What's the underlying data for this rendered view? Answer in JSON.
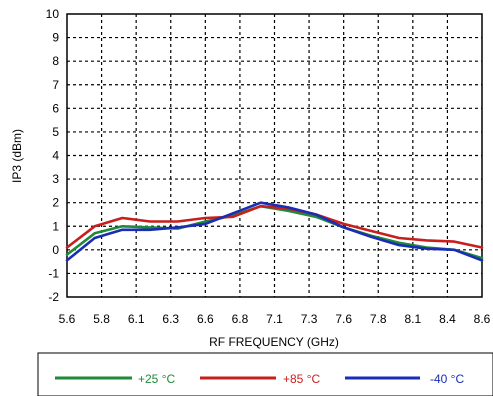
{
  "chart_data": {
    "type": "line",
    "xlabel": "RF FREQUENCY (GHz)",
    "ylabel": "IP3 (dBm)",
    "xlim": [
      5.6,
      8.6
    ],
    "ylim": [
      -2,
      10
    ],
    "grid": true,
    "legend_position": "bottom",
    "x_tick_labels": [
      "5.6",
      "5.8",
      "6.1",
      "6.3",
      "6.6",
      "6.8",
      "7.1",
      "7.3",
      "7.6",
      "7.8",
      "8.1",
      "8.4",
      "8.6"
    ],
    "y_tick_labels": [
      "-2",
      "-1",
      "0",
      "1",
      "2",
      "3",
      "4",
      "5",
      "6",
      "7",
      "8",
      "9",
      "10"
    ],
    "x": [
      5.6,
      5.8,
      6.0,
      6.2,
      6.4,
      6.6,
      6.8,
      7.0,
      7.2,
      7.4,
      7.6,
      7.8,
      8.0,
      8.2,
      8.4,
      8.6
    ],
    "series": [
      {
        "name": "+25 °C",
        "color": "#1e8a3a",
        "values": [
          -0.2,
          0.7,
          1.0,
          0.95,
          0.9,
          1.2,
          1.45,
          1.85,
          1.65,
          1.4,
          0.95,
          0.6,
          0.3,
          0.1,
          0.0,
          -0.35
        ]
      },
      {
        "name": "+85 °C",
        "color": "#c81e1e",
        "values": [
          0.1,
          1.0,
          1.35,
          1.2,
          1.2,
          1.35,
          1.4,
          1.85,
          1.75,
          1.5,
          1.1,
          0.8,
          0.5,
          0.4,
          0.35,
          0.1
        ]
      },
      {
        "name": "-40 °C",
        "color": "#1a2db4",
        "values": [
          -0.45,
          0.5,
          0.85,
          0.85,
          0.95,
          1.1,
          1.55,
          2.0,
          1.8,
          1.5,
          0.95,
          0.55,
          0.2,
          0.05,
          0.0,
          -0.45
        ]
      }
    ]
  }
}
